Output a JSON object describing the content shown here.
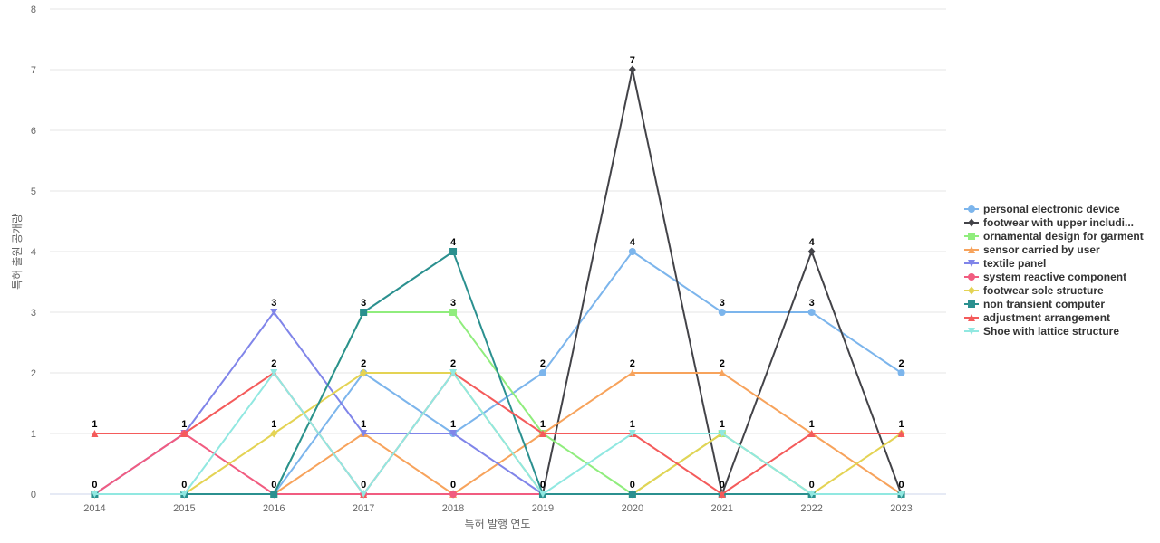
{
  "chart_data": {
    "type": "line",
    "xlabel": "특허 발행 연도",
    "ylabel": "특허 출원 공개량",
    "ylim": [
      0,
      8
    ],
    "yticks": [
      0,
      1,
      2,
      3,
      4,
      5,
      6,
      7,
      8
    ],
    "grid": true,
    "legend_position": "right",
    "x": [
      "2014",
      "2015",
      "2016",
      "2017",
      "2018",
      "2019",
      "2020",
      "2021",
      "2022",
      "2023"
    ],
    "series": [
      {
        "name": "personal electronic device",
        "color": "#7cb5ec",
        "marker": "circle",
        "values": [
          0,
          0,
          0,
          2,
          1,
          2,
          4,
          3,
          3,
          2
        ]
      },
      {
        "name": "footwear with upper includi...",
        "color": "#434348",
        "marker": "diamond",
        "values": [
          0,
          0,
          0,
          0,
          0,
          0,
          7,
          0,
          4,
          0
        ]
      },
      {
        "name": "ornamental design for garment",
        "color": "#90ed7d",
        "marker": "square",
        "values": [
          0,
          0,
          0,
          3,
          3,
          1,
          0,
          1,
          0,
          0
        ]
      },
      {
        "name": "sensor carried by user",
        "color": "#f7a35c",
        "marker": "triangle",
        "values": [
          0,
          0,
          0,
          1,
          0,
          1,
          2,
          2,
          1,
          0
        ]
      },
      {
        "name": "textile panel",
        "color": "#8085e9",
        "marker": "triangle-down",
        "values": [
          0,
          1,
          3,
          1,
          1,
          0,
          0,
          0,
          0,
          0
        ]
      },
      {
        "name": "system reactive component",
        "color": "#f15c80",
        "marker": "circle",
        "values": [
          0,
          1,
          0,
          0,
          0,
          0,
          0,
          0,
          0,
          0
        ]
      },
      {
        "name": "footwear sole structure",
        "color": "#e4d354",
        "marker": "diamond",
        "values": [
          0,
          0,
          1,
          2,
          2,
          0,
          0,
          1,
          0,
          1
        ]
      },
      {
        "name": "non transient computer",
        "color": "#2b908f",
        "marker": "square",
        "values": [
          0,
          0,
          0,
          3,
          4,
          0,
          0,
          0,
          0,
          0
        ]
      },
      {
        "name": "adjustment arrangement",
        "color": "#f45b5b",
        "marker": "triangle",
        "values": [
          1,
          1,
          2,
          0,
          2,
          1,
          1,
          0,
          1,
          1
        ]
      },
      {
        "name": "Shoe with lattice structure",
        "color": "#91e8e1",
        "marker": "triangle-down",
        "values": [
          0,
          0,
          2,
          0,
          2,
          0,
          1,
          1,
          0,
          0
        ]
      }
    ]
  }
}
